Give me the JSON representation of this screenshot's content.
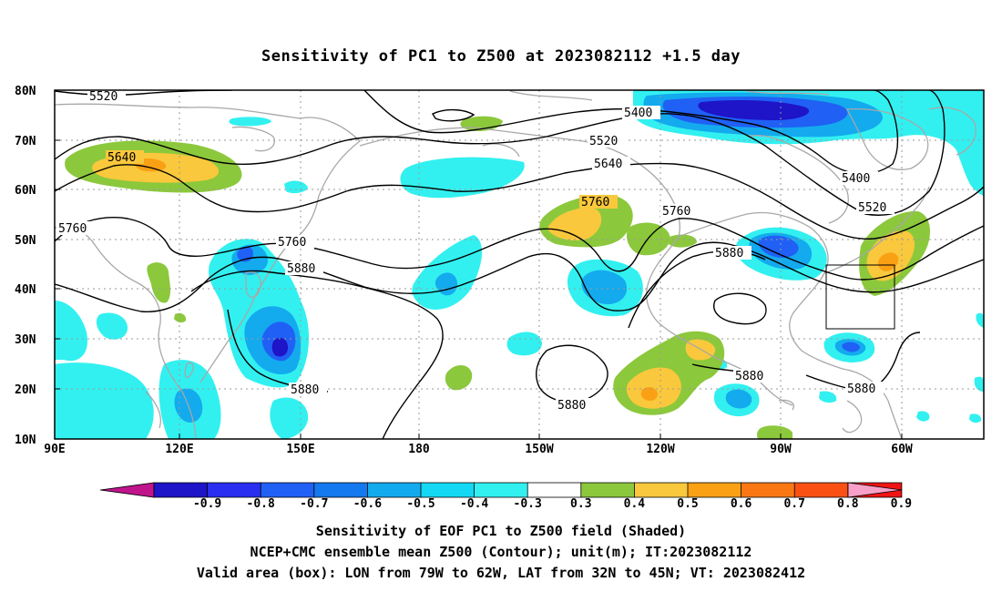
{
  "title": "Sensitivity of PC1 to Z500 at 2023082112 +1.5 day",
  "axes": {
    "lat_labels": [
      "80N",
      "70N",
      "60N",
      "50N",
      "40N",
      "30N",
      "20N",
      "10N"
    ],
    "lon_labels": [
      "90E",
      "120E",
      "150E",
      "180",
      "150W",
      "120W",
      "90W",
      "60W"
    ]
  },
  "contour_labels": {
    "l5520a": "5520",
    "l5640a": "5640",
    "l5760a": "5760",
    "l5760b": "5760",
    "l5880a": "5880",
    "l5880b": "5880",
    "l5400a": "5400",
    "l5520b": "5520",
    "l5640b": "5640",
    "l5760c": "5760",
    "l5760d": "5760",
    "l5880c": "5880",
    "l5400b": "5400",
    "l5520c": "5520",
    "l5880d": "5880",
    "l5880e": "5880",
    "l5880f": "5880"
  },
  "colorbar": {
    "neg_colors": [
      "#1e14c8",
      "#2a2ef0",
      "#2060f5",
      "#1478ee",
      "#14aaee",
      "#14d8f4",
      "#32f0f0"
    ],
    "pos_colors": [
      "#8cc83c",
      "#fac83c",
      "#faa014",
      "#fa7814",
      "#fa5014",
      "#f01414"
    ],
    "left_tip": "#c0148c",
    "right_tip": "#f8a0c8",
    "labels": [
      "-0.9",
      "-0.8",
      "-0.7",
      "-0.6",
      "-0.5",
      "-0.4",
      "-0.3",
      "0.3",
      "0.4",
      "0.5",
      "0.6",
      "0.7",
      "0.8",
      "0.9"
    ]
  },
  "footer": {
    "line1": "Sensitivity of EOF PC1 to Z500 field (Shaded)",
    "line2": "NCEP+CMC ensemble mean Z500 (Contour); unit(m); IT:2023082112",
    "line3": "Valid area (box): LON from 79W to 62W, LAT from 32N to 45N; VT: 2023082412"
  }
}
